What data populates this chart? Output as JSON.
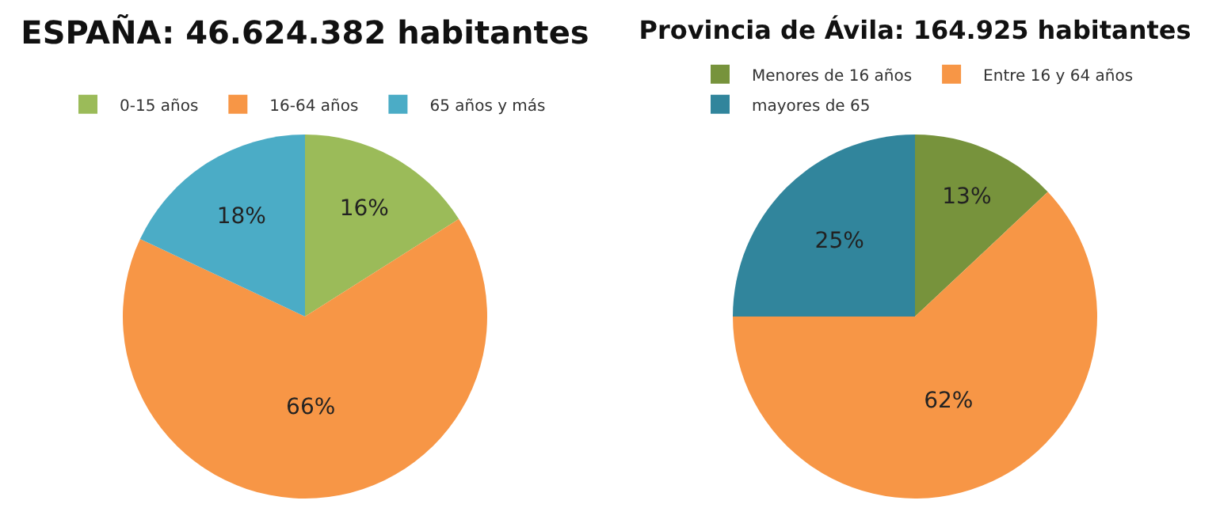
{
  "chart_data": [
    {
      "type": "pie",
      "title": "ESPAÑA: 46.624.382 habitantes",
      "categories": [
        "0-15 años",
        "16-64 años",
        "65 años y más"
      ],
      "values": [
        16,
        66,
        18
      ],
      "colors": [
        "#9bbb59",
        "#f79646",
        "#4bacc6"
      ],
      "value_labels": [
        "16%",
        "66%",
        "18%"
      ],
      "legend": "top"
    },
    {
      "type": "pie",
      "title": "Provincia de Ávila: 164.925 habitantes",
      "categories": [
        "Menores de 16 años",
        "Entre 16 y 64 años",
        "mayores de 65"
      ],
      "values": [
        13,
        62,
        25
      ],
      "colors": [
        "#77933c",
        "#f79646",
        "#31859c"
      ],
      "value_labels": [
        "13%",
        "62%",
        "25%"
      ],
      "legend": "top"
    }
  ]
}
